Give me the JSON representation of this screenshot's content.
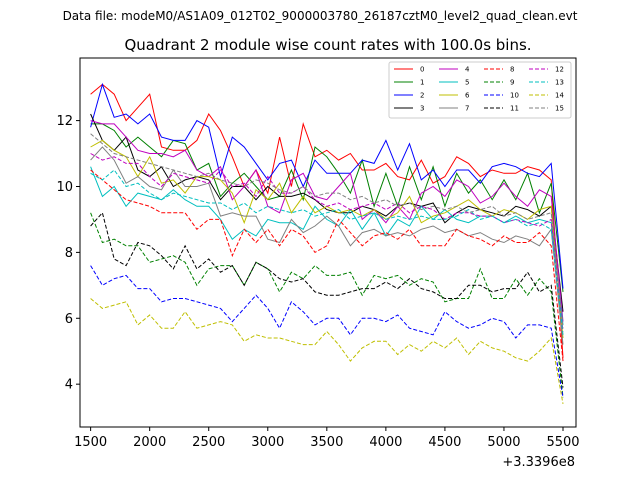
{
  "chart_data": {
    "type": "line",
    "suptitle": "Data file: modeM0/AS1A09_012T02_9000003780_26187cztM0_level2_quad_clean.evt",
    "title": "Quadrant 2 module wise count rates with 100.0s bins.",
    "xlabel": "",
    "ylabel": "",
    "x_offset_label": "+3.3396e8",
    "xlim": [
      1410,
      5610
    ],
    "ylim": [
      2.7,
      13.9
    ],
    "x_ticks": [
      1500,
      2000,
      2500,
      3000,
      3500,
      4000,
      4500,
      5000,
      5500
    ],
    "y_ticks": [
      4,
      6,
      8,
      10,
      12
    ],
    "x": [
      1500,
      1600,
      1700,
      1800,
      1900,
      2000,
      2100,
      2200,
      2300,
      2400,
      2500,
      2600,
      2700,
      2800,
      2900,
      3000,
      3100,
      3200,
      3300,
      3400,
      3500,
      3600,
      3700,
      3800,
      3900,
      4000,
      4100,
      4200,
      4300,
      4400,
      4500,
      4600,
      4700,
      4800,
      4900,
      5000,
      5100,
      5200,
      5300,
      5400,
      5500
    ],
    "series": [
      {
        "name": "0",
        "color": "#ff0000",
        "dash": "solid",
        "values": [
          12.8,
          13.1,
          12.8,
          12.0,
          12.4,
          12.8,
          11.2,
          11.1,
          11.1,
          11.4,
          12.2,
          11.7,
          10.9,
          10.0,
          10.5,
          9.8,
          11.5,
          10.0,
          11.9,
          10.9,
          11.1,
          10.8,
          11.0,
          10.5,
          10.5,
          10.7,
          10.3,
          10.2,
          10.8,
          10.1,
          10.3,
          10.9,
          10.7,
          10.3,
          10.5,
          10.4,
          10.4,
          10.6,
          10.5,
          10.2,
          4.8
        ]
      },
      {
        "name": "1",
        "color": "#008000",
        "dash": "solid",
        "values": [
          11.9,
          11.9,
          11.7,
          11.2,
          11.5,
          11.2,
          10.9,
          11.4,
          11.3,
          10.5,
          10.7,
          9.7,
          10.1,
          10.4,
          10.0,
          9.6,
          9.7,
          10.5,
          9.6,
          11.2,
          10.9,
          10.4,
          9.8,
          10.8,
          9.4,
          10.4,
          9.4,
          10.6,
          9.6,
          10.6,
          9.4,
          10.4,
          9.8,
          10.2,
          9.6,
          10.2,
          9.6,
          10.4,
          9.2,
          10.1,
          6.8
        ]
      },
      {
        "name": "2",
        "color": "#0000ff",
        "dash": "solid",
        "values": [
          11.8,
          13.1,
          12.1,
          12.2,
          11.9,
          12.2,
          11.5,
          11.4,
          11.4,
          12.0,
          11.8,
          10.3,
          11.5,
          11.2,
          10.7,
          10.2,
          10.7,
          10.8,
          10.0,
          10.8,
          10.4,
          10.4,
          10.4,
          10.8,
          10.7,
          11.4,
          10.5,
          11.3,
          10.2,
          10.5,
          10.0,
          10.5,
          10.5,
          10.1,
          10.6,
          10.7,
          10.6,
          10.4,
          10.3,
          10.7,
          6.9
        ]
      },
      {
        "name": "3",
        "color": "#000000",
        "dash": "solid",
        "values": [
          12.2,
          11.4,
          11.1,
          11.5,
          10.5,
          10.3,
          10.6,
          10.0,
          10.2,
          10.3,
          10.2,
          9.6,
          10.0,
          10.0,
          9.6,
          10.0,
          9.7,
          9.7,
          9.8,
          9.6,
          9.3,
          9.2,
          9.2,
          9.4,
          9.3,
          9.1,
          9.4,
          9.5,
          9.4,
          9.5,
          8.9,
          9.2,
          9.4,
          9.3,
          9.2,
          9.1,
          9.4,
          9.3,
          9.1,
          9.4,
          6.2
        ]
      },
      {
        "name": "4",
        "color": "#bf00bf",
        "dash": "solid",
        "values": [
          12.0,
          11.9,
          11.9,
          11.5,
          11.1,
          11.0,
          11.0,
          10.9,
          11.1,
          10.5,
          10.3,
          10.6,
          9.6,
          10.0,
          10.5,
          9.4,
          9.2,
          10.2,
          10.4,
          9.7,
          9.6,
          10.0,
          10.4,
          9.0,
          9.3,
          8.9,
          9.4,
          9.0,
          9.8,
          10.0,
          9.7,
          10.2,
          10.0,
          9.5,
          9.7,
          10.1,
          9.7,
          9.4,
          9.9,
          9.7,
          5.9
        ]
      },
      {
        "name": "5",
        "color": "#00bfbf",
        "dash": "solid",
        "values": [
          10.6,
          9.7,
          10.0,
          9.4,
          9.8,
          9.7,
          9.6,
          9.9,
          9.6,
          9.4,
          9.4,
          9.0,
          8.4,
          8.7,
          8.5,
          9.0,
          8.9,
          8.9,
          8.7,
          9.4,
          9.0,
          8.8,
          9.3,
          8.7,
          9.2,
          8.5,
          9.0,
          8.8,
          9.4,
          9.0,
          9.3,
          9.0,
          8.9,
          9.1,
          9.1,
          8.9,
          9.1,
          8.9,
          9.0,
          8.9,
          5.8
        ]
      },
      {
        "name": "6",
        "color": "#bfbf00",
        "dash": "solid",
        "values": [
          11.2,
          11.4,
          11.1,
          10.9,
          10.3,
          10.9,
          10.1,
          10.2,
          9.8,
          10.3,
          10.3,
          10.2,
          9.8,
          8.9,
          9.9,
          9.6,
          10.1,
          9.2,
          9.7,
          9.2,
          9.4,
          9.2,
          9.3,
          9.1,
          9.3,
          9.0,
          9.2,
          9.7,
          8.9,
          9.1,
          9.2,
          9.4,
          9.6,
          9.3,
          9.1,
          9.3,
          9.2,
          9.0,
          9.3,
          9.4,
          5.4
        ]
      },
      {
        "name": "7",
        "color": "#808080",
        "dash": "solid",
        "values": [
          10.8,
          11.2,
          10.8,
          10.1,
          10.3,
          10.0,
          9.9,
          10.5,
          10.0,
          10.0,
          10.1,
          9.1,
          9.2,
          9.1,
          9.1,
          8.4,
          8.3,
          9.0,
          8.6,
          8.8,
          9.1,
          8.8,
          8.2,
          8.6,
          8.7,
          8.5,
          8.6,
          8.5,
          8.7,
          8.8,
          8.6,
          8.7,
          8.5,
          8.6,
          8.4,
          8.3,
          8.5,
          8.4,
          8.2,
          8.7,
          5.2
        ]
      },
      {
        "name": "8",
        "color": "#ff0000",
        "dash": "dash",
        "values": [
          10.5,
          10.2,
          9.9,
          9.6,
          9.5,
          9.4,
          9.2,
          9.2,
          9.2,
          8.7,
          9.0,
          9.0,
          7.9,
          8.7,
          8.3,
          8.7,
          8.2,
          8.7,
          8.5,
          8.0,
          8.2,
          9.0,
          8.6,
          8.2,
          8.5,
          8.6,
          8.4,
          8.7,
          8.2,
          8.2,
          8.2,
          8.7,
          8.5,
          8.4,
          8.2,
          8.5,
          8.3,
          8.3,
          8.6,
          8.2,
          4.7
        ]
      },
      {
        "name": "9",
        "color": "#008000",
        "dash": "dash",
        "values": [
          9.2,
          8.3,
          8.4,
          8.2,
          8.2,
          7.7,
          7.8,
          7.9,
          7.7,
          7.0,
          7.5,
          7.6,
          7.6,
          7.0,
          7.7,
          7.5,
          6.8,
          7.4,
          7.2,
          7.6,
          7.3,
          7.3,
          7.4,
          6.7,
          7.3,
          7.2,
          7.3,
          7.0,
          7.2,
          7.1,
          6.5,
          6.6,
          6.6,
          7.5,
          6.6,
          6.6,
          7.2,
          6.7,
          7.2,
          6.8,
          3.6
        ]
      },
      {
        "name": "10",
        "color": "#0000ff",
        "dash": "dash",
        "values": [
          7.6,
          7.0,
          7.2,
          7.3,
          6.9,
          6.9,
          6.5,
          6.6,
          6.6,
          6.5,
          6.4,
          6.3,
          5.9,
          6.3,
          6.7,
          6.3,
          5.7,
          6.5,
          6.2,
          5.8,
          6.0,
          6.0,
          5.5,
          6.0,
          6.0,
          5.9,
          6.1,
          5.7,
          5.6,
          5.5,
          6.2,
          5.9,
          5.7,
          5.8,
          6.0,
          5.9,
          5.4,
          5.8,
          5.8,
          5.7,
          3.6
        ]
      },
      {
        "name": "11",
        "color": "#000000",
        "dash": "dash",
        "values": [
          8.8,
          9.2,
          7.8,
          7.6,
          8.3,
          8.2,
          7.9,
          7.5,
          8.2,
          7.5,
          7.8,
          7.4,
          7.6,
          7.0,
          7.7,
          7.5,
          7.2,
          7.1,
          7.2,
          6.8,
          6.7,
          6.7,
          6.8,
          6.9,
          6.9,
          7.1,
          6.9,
          7.2,
          6.9,
          6.8,
          6.6,
          6.6,
          7.0,
          7.0,
          6.8,
          6.9,
          6.9,
          7.4,
          6.8,
          7.0,
          3.9
        ]
      },
      {
        "name": "12",
        "color": "#bf00bf",
        "dash": "dash",
        "values": [
          11.0,
          10.8,
          10.9,
          10.7,
          10.7,
          10.3,
          10.0,
          10.4,
          10.3,
          10.2,
          10.1,
          10.5,
          10.0,
          10.1,
          9.7,
          10.3,
          9.8,
          9.8,
          10.0,
          9.6,
          9.4,
          9.5,
          9.3,
          9.4,
          9.5,
          9.3,
          9.5,
          9.2,
          9.4,
          9.3,
          9.0,
          9.2,
          9.2,
          9.1,
          9.1,
          8.9,
          9.0,
          8.9,
          8.8,
          9.0,
          5.6
        ]
      },
      {
        "name": "13",
        "color": "#00bfbf",
        "dash": "dash",
        "values": [
          10.4,
          10.2,
          10.5,
          10.0,
          10.1,
          9.8,
          9.6,
          9.8,
          9.7,
          9.6,
          9.5,
          9.5,
          9.3,
          9.5,
          9.2,
          9.4,
          9.3,
          9.2,
          9.3,
          9.1,
          9.2,
          9.3,
          9.0,
          9.1,
          9.2,
          9.0,
          9.1,
          9.0,
          9.1,
          9.0,
          9.0,
          9.1,
          9.3,
          9.0,
          9.1,
          8.9,
          9.0,
          8.8,
          8.9,
          8.7,
          5.5
        ]
      },
      {
        "name": "14",
        "color": "#bfbf00",
        "dash": "dash",
        "values": [
          6.6,
          6.3,
          6.4,
          6.5,
          5.8,
          6.1,
          5.7,
          5.7,
          6.2,
          5.7,
          5.8,
          5.9,
          5.8,
          5.3,
          5.5,
          5.4,
          5.4,
          5.3,
          5.2,
          5.2,
          5.6,
          5.2,
          4.7,
          5.1,
          5.3,
          5.3,
          4.9,
          5.2,
          5.0,
          5.3,
          5.1,
          5.4,
          4.9,
          5.3,
          5.1,
          5.0,
          4.8,
          4.7,
          5.0,
          5.4,
          3.4
        ]
      },
      {
        "name": "15",
        "color": "#808080",
        "dash": "dash",
        "values": [
          11.6,
          11.3,
          11.0,
          10.9,
          10.8,
          10.7,
          10.6,
          10.5,
          10.4,
          10.3,
          10.4,
          10.2,
          10.1,
          10.0,
          10.2,
          10.1,
          9.9,
          9.8,
          10.0,
          9.7,
          9.8,
          9.8,
          9.6,
          9.7,
          9.5,
          9.6,
          9.4,
          9.5,
          9.3,
          9.4,
          9.3,
          9.4,
          9.2,
          9.3,
          9.4,
          9.1,
          9.2,
          9.0,
          9.1,
          9.2,
          5.7
        ]
      }
    ],
    "legend_location": "upper right",
    "legend_columns": 4
  }
}
